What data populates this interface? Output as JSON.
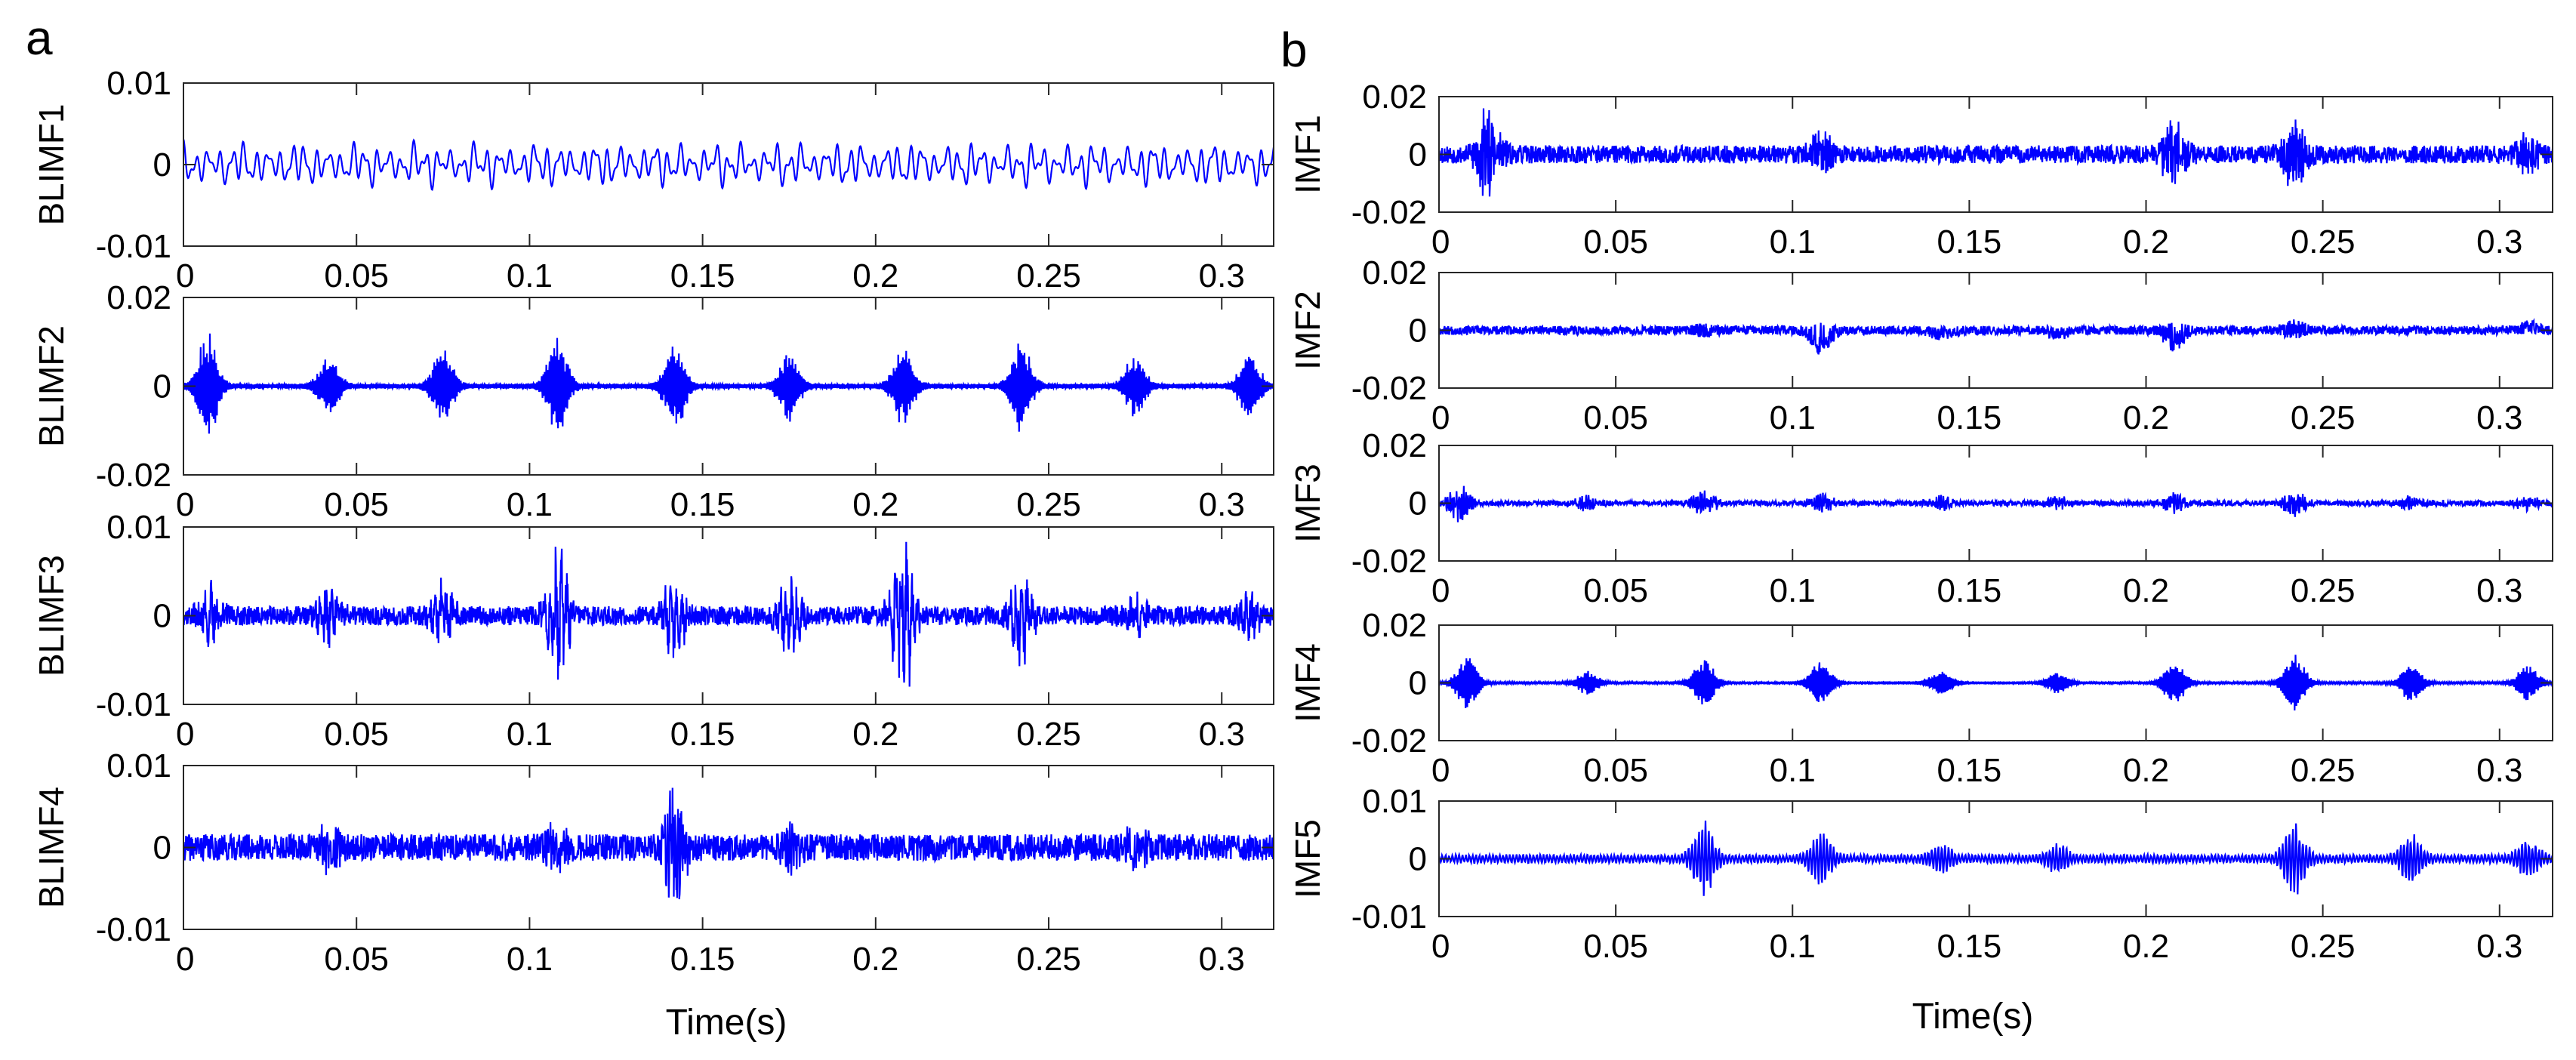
{
  "figure": {
    "background": "#ffffff"
  },
  "panels": [
    {
      "label": "a",
      "xlabel": "Time(s)"
    },
    {
      "label": "b",
      "xlabel": "Time(s)"
    }
  ],
  "chart_data": [
    {
      "type": "line",
      "panel": "a",
      "ylabel": "BLIMF1",
      "xlim": [
        0,
        0.315
      ],
      "ylim": [
        -0.01,
        0.01
      ],
      "xticks": [
        "0",
        "0.05",
        "0.1",
        "0.15",
        "0.2",
        "0.25",
        "0.3"
      ],
      "xtick_values": [
        0,
        0.05,
        0.1,
        0.15,
        0.2,
        0.25,
        0.3
      ],
      "yticks": [
        "-0.01",
        "0",
        "0.01"
      ],
      "ytick_values": [
        -0.01,
        0,
        0.01
      ],
      "line_color": "#0000ff",
      "style": "lowfreq",
      "amplitude": 0.0022,
      "carrier_cycles": 90,
      "seed": 11,
      "bursts": []
    },
    {
      "type": "line",
      "panel": "a",
      "ylabel": "BLIMF2",
      "xlim": [
        0,
        0.315
      ],
      "ylim": [
        -0.02,
        0.02
      ],
      "xticks": [
        "0",
        "0.05",
        "0.1",
        "0.15",
        "0.2",
        "0.25",
        "0.3"
      ],
      "xtick_values": [
        0,
        0.05,
        0.1,
        0.15,
        0.2,
        0.25,
        0.3
      ],
      "yticks": [
        "-0.02",
        "0",
        "0.02"
      ],
      "ytick_values": [
        -0.02,
        0,
        0.02
      ],
      "line_color": "#0000ff",
      "style": "bursty",
      "amplitude": 0.0006,
      "carrier_cycles": 700,
      "seed": 23,
      "bursts": [
        [
          0.007,
          0.012
        ],
        [
          0.042,
          0.007
        ],
        [
          0.075,
          0.009
        ],
        [
          0.108,
          0.011
        ],
        [
          0.142,
          0.01
        ],
        [
          0.175,
          0.008
        ],
        [
          0.208,
          0.009
        ],
        [
          0.242,
          0.01
        ],
        [
          0.275,
          0.007
        ],
        [
          0.308,
          0.008
        ]
      ]
    },
    {
      "type": "line",
      "panel": "a",
      "ylabel": "BLIMF3",
      "xlim": [
        0,
        0.315
      ],
      "ylim": [
        -0.01,
        0.01
      ],
      "xticks": [
        "0",
        "0.05",
        "0.1",
        "0.15",
        "0.2",
        "0.25",
        "0.3"
      ],
      "xtick_values": [
        0,
        0.05,
        0.1,
        0.15,
        0.2,
        0.25,
        0.3
      ],
      "yticks": [
        "-0.01",
        "0",
        "0.01"
      ],
      "ytick_values": [
        -0.01,
        0,
        0.01
      ],
      "line_color": "#0000ff",
      "style": "dense",
      "amplitude": 0.0012,
      "carrier_cycles": 2400,
      "seed": 37,
      "bursts": [
        [
          0.008,
          0.003
        ],
        [
          0.042,
          0.003
        ],
        [
          0.075,
          0.003
        ],
        [
          0.108,
          0.0075
        ],
        [
          0.142,
          0.004
        ],
        [
          0.175,
          0.004
        ],
        [
          0.208,
          0.0085
        ],
        [
          0.242,
          0.005
        ],
        [
          0.275,
          0.002
        ],
        [
          0.308,
          0.002
        ]
      ]
    },
    {
      "type": "line",
      "panel": "a",
      "ylabel": "BLIMF4",
      "xlim": [
        0,
        0.315
      ],
      "ylim": [
        -0.01,
        0.01
      ],
      "xticks": [
        "0",
        "0.05",
        "0.1",
        "0.15",
        "0.2",
        "0.25",
        "0.3"
      ],
      "xtick_values": [
        0,
        0.05,
        0.1,
        0.15,
        0.2,
        0.25,
        0.3
      ],
      "yticks": [
        "-0.01",
        "0",
        "0.01"
      ],
      "ytick_values": [
        -0.01,
        0,
        0.01
      ],
      "line_color": "#0000ff",
      "style": "dense",
      "amplitude": 0.0018,
      "carrier_cycles": 3000,
      "seed": 41,
      "bursts": [
        [
          0.042,
          0.002
        ],
        [
          0.108,
          0.002
        ],
        [
          0.142,
          0.006
        ],
        [
          0.175,
          0.002
        ],
        [
          0.275,
          0.002
        ]
      ]
    },
    {
      "type": "line",
      "panel": "b",
      "ylabel": "IMF1",
      "xlim": [
        0,
        0.315
      ],
      "ylim": [
        -0.02,
        0.02
      ],
      "xticks": [
        "0",
        "0.05",
        "0.1",
        "0.15",
        "0.2",
        "0.25",
        "0.3"
      ],
      "xtick_values": [
        0,
        0.05,
        0.1,
        0.15,
        0.2,
        0.25,
        0.3
      ],
      "yticks": [
        "-0.02",
        "0",
        "0.02"
      ],
      "ytick_values": [
        -0.02,
        0,
        0.02
      ],
      "line_color": "#0000ff",
      "style": "dense",
      "amplitude": 0.0035,
      "carrier_cycles": 3400,
      "seed": 53,
      "bursts": [
        [
          0.014,
          0.015
        ],
        [
          0.108,
          0.006
        ],
        [
          0.208,
          0.01
        ],
        [
          0.242,
          0.01
        ],
        [
          0.308,
          0.005
        ]
      ]
    },
    {
      "type": "line",
      "panel": "b",
      "ylabel": "IMF2",
      "xlim": [
        0,
        0.315
      ],
      "ylim": [
        -0.02,
        0.02
      ],
      "xticks": [
        "0",
        "0.05",
        "0.1",
        "0.15",
        "0.2",
        "0.25",
        "0.3"
      ],
      "xtick_values": [
        0,
        0.05,
        0.1,
        0.15,
        0.2,
        0.25,
        0.3
      ],
      "yticks": [
        "-0.02",
        "0",
        "0.02"
      ],
      "ytick_values": [
        -0.02,
        0,
        0.02
      ],
      "line_color": "#0000ff",
      "style": "dense",
      "amplitude": 0.0017,
      "carrier_cycles": 2600,
      "seed": 67,
      "bursts": [
        [
          0.075,
          0.002
        ],
        [
          0.108,
          0.008
        ],
        [
          0.142,
          0.002
        ],
        [
          0.175,
          0.002
        ],
        [
          0.208,
          0.008
        ],
        [
          0.242,
          0.004
        ],
        [
          0.308,
          0.002
        ]
      ]
    },
    {
      "type": "line",
      "panel": "b",
      "ylabel": "IMF3",
      "xlim": [
        0,
        0.315
      ],
      "ylim": [
        -0.02,
        0.02
      ],
      "xticks": [
        "0",
        "0.05",
        "0.1",
        "0.15",
        "0.2",
        "0.25",
        "0.3"
      ],
      "xtick_values": [
        0,
        0.05,
        0.1,
        0.15,
        0.2,
        0.25,
        0.3
      ],
      "yticks": [
        "-0.02",
        "0",
        "0.02"
      ],
      "ytick_values": [
        -0.02,
        0,
        0.02
      ],
      "line_color": "#0000ff",
      "style": "dense",
      "amplitude": 0.001,
      "carrier_cycles": 2100,
      "seed": 79,
      "bursts": [
        [
          0.006,
          0.006
        ],
        [
          0.042,
          0.002
        ],
        [
          0.075,
          0.004
        ],
        [
          0.108,
          0.003
        ],
        [
          0.142,
          0.002
        ],
        [
          0.175,
          0.002
        ],
        [
          0.208,
          0.003
        ],
        [
          0.242,
          0.004
        ],
        [
          0.275,
          0.002
        ],
        [
          0.308,
          0.002
        ]
      ]
    },
    {
      "type": "line",
      "panel": "b",
      "ylabel": "IMF4",
      "xlim": [
        0,
        0.315
      ],
      "ylim": [
        -0.02,
        0.02
      ],
      "xticks": [
        "0",
        "0.05",
        "0.1",
        "0.15",
        "0.2",
        "0.25",
        "0.3"
      ],
      "xtick_values": [
        0,
        0.05,
        0.1,
        0.15,
        0.2,
        0.25,
        0.3
      ],
      "yticks": [
        "-0.02",
        "0",
        "0.02"
      ],
      "ytick_values": [
        -0.02,
        0,
        0.02
      ],
      "line_color": "#0000ff",
      "style": "bursty",
      "amplitude": 0.0004,
      "carrier_cycles": 650,
      "seed": 83,
      "bursts": [
        [
          0.008,
          0.009
        ],
        [
          0.042,
          0.004
        ],
        [
          0.075,
          0.009
        ],
        [
          0.108,
          0.009
        ],
        [
          0.142,
          0.005
        ],
        [
          0.175,
          0.004
        ],
        [
          0.208,
          0.008
        ],
        [
          0.242,
          0.01
        ],
        [
          0.275,
          0.006
        ],
        [
          0.308,
          0.006
        ]
      ]
    },
    {
      "type": "line",
      "panel": "b",
      "ylabel": "IMF5",
      "xlim": [
        0,
        0.315
      ],
      "ylim": [
        -0.01,
        0.01
      ],
      "xticks": [
        "0",
        "0.05",
        "0.1",
        "0.15",
        "0.2",
        "0.25",
        "0.3"
      ],
      "xtick_values": [
        0,
        0.05,
        0.1,
        0.15,
        0.2,
        0.25,
        0.3
      ],
      "yticks": [
        "-0.01",
        "0",
        "0.01"
      ],
      "ytick_values": [
        -0.01,
        0,
        0.01
      ],
      "line_color": "#0000ff",
      "style": "bursty",
      "amplitude": 0.0008,
      "carrier_cycles": 330,
      "seed": 97,
      "bursts": [
        [
          0.075,
          0.006
        ],
        [
          0.108,
          0.004
        ],
        [
          0.142,
          0.002
        ],
        [
          0.175,
          0.002
        ],
        [
          0.242,
          0.006
        ],
        [
          0.275,
          0.004
        ],
        [
          0.308,
          0.003
        ]
      ]
    }
  ]
}
